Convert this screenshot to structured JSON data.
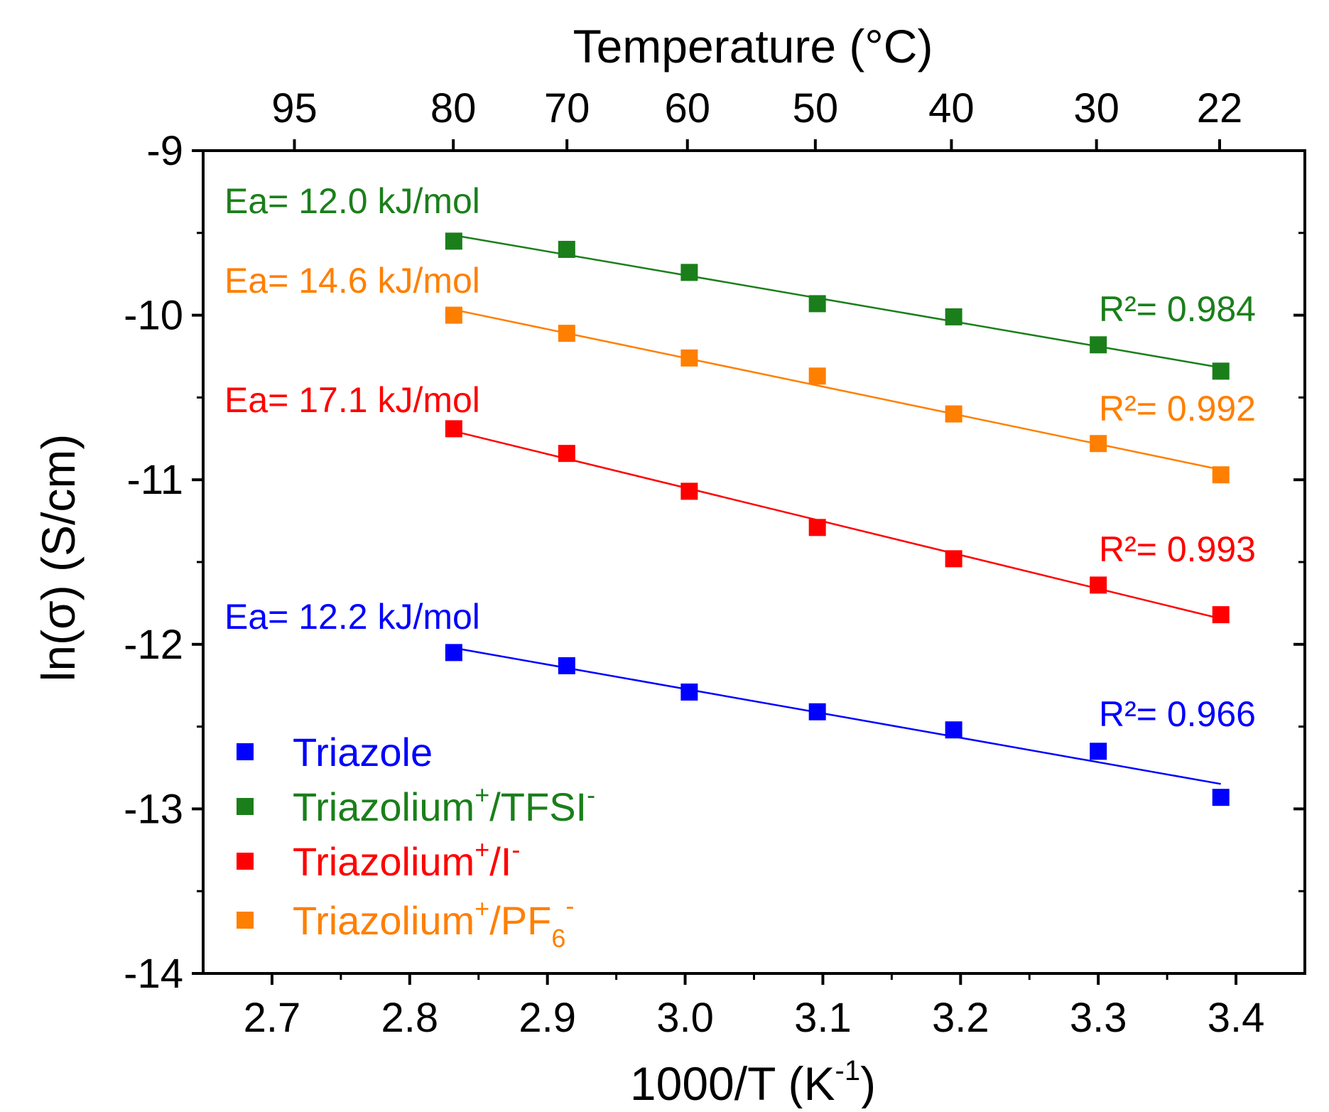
{
  "chart_data": {
    "type": "scatter",
    "top_title": "Temperature (°C)",
    "xlabel": {
      "main": "1000/T (K",
      "sup": "-1",
      "close": ")"
    },
    "ylabel": "ln(σ) (S/cm)",
    "xlim": [
      2.65,
      3.45
    ],
    "ylim": [
      -14,
      -9
    ],
    "x_ticks": [
      "2.7",
      "2.8",
      "2.9",
      "3.0",
      "3.1",
      "3.2",
      "3.3",
      "3.4"
    ],
    "y_ticks": [
      "-14",
      "-13",
      "-12",
      "-11",
      "-10",
      "-9"
    ],
    "top_ticks": [
      "95",
      "80",
      "70",
      "60",
      "50",
      "40",
      "30",
      "22"
    ],
    "x": [
      2.832,
      2.914,
      3.003,
      3.096,
      3.195,
      3.3,
      3.389
    ],
    "series": [
      {
        "key": "tfsi",
        "legend": {
          "base": "Triazolium",
          "sup": "+",
          "tail": "/TFSI",
          "sup2": "-"
        },
        "color": "#1a7f1a",
        "y": [
          -9.55,
          -9.6,
          -9.74,
          -9.93,
          -10.01,
          -10.18,
          -10.34
        ],
        "ea": "Ea= 12.0 kJ/mol",
        "r2": "R²= 0.984"
      },
      {
        "key": "pf6",
        "legend": {
          "base": "Triazolium",
          "sup": "+",
          "tail": "/PF",
          "sub": "6",
          "sup2": "-"
        },
        "color": "#ff7f00",
        "y": [
          -10.0,
          -10.11,
          -10.26,
          -10.37,
          -10.6,
          -10.78,
          -10.97
        ],
        "ea": "Ea= 14.6 kJ/mol",
        "r2": "R²= 0.992"
      },
      {
        "key": "iodide",
        "legend": {
          "base": "Triazolium",
          "sup": "+",
          "tail": "/I",
          "sup2": "-"
        },
        "color": "#ff0000",
        "y": [
          -10.69,
          -10.84,
          -11.07,
          -11.29,
          -11.48,
          -11.64,
          -11.82
        ],
        "ea": "Ea= 17.1 kJ/mol",
        "r2": "R²= 0.993"
      },
      {
        "key": "triazole",
        "legend": {
          "base": "Triazole"
        },
        "color": "#0000ff",
        "y": [
          -12.05,
          -12.13,
          -12.29,
          -12.41,
          -12.52,
          -12.65,
          -12.93
        ],
        "ea": "Ea= 12.2 kJ/mol",
        "r2": "R²= 0.966"
      }
    ],
    "legend_order": [
      "triazole",
      "tfsi",
      "iodide",
      "pf6"
    ],
    "legend_position": "bottom-left",
    "grid": false
  }
}
